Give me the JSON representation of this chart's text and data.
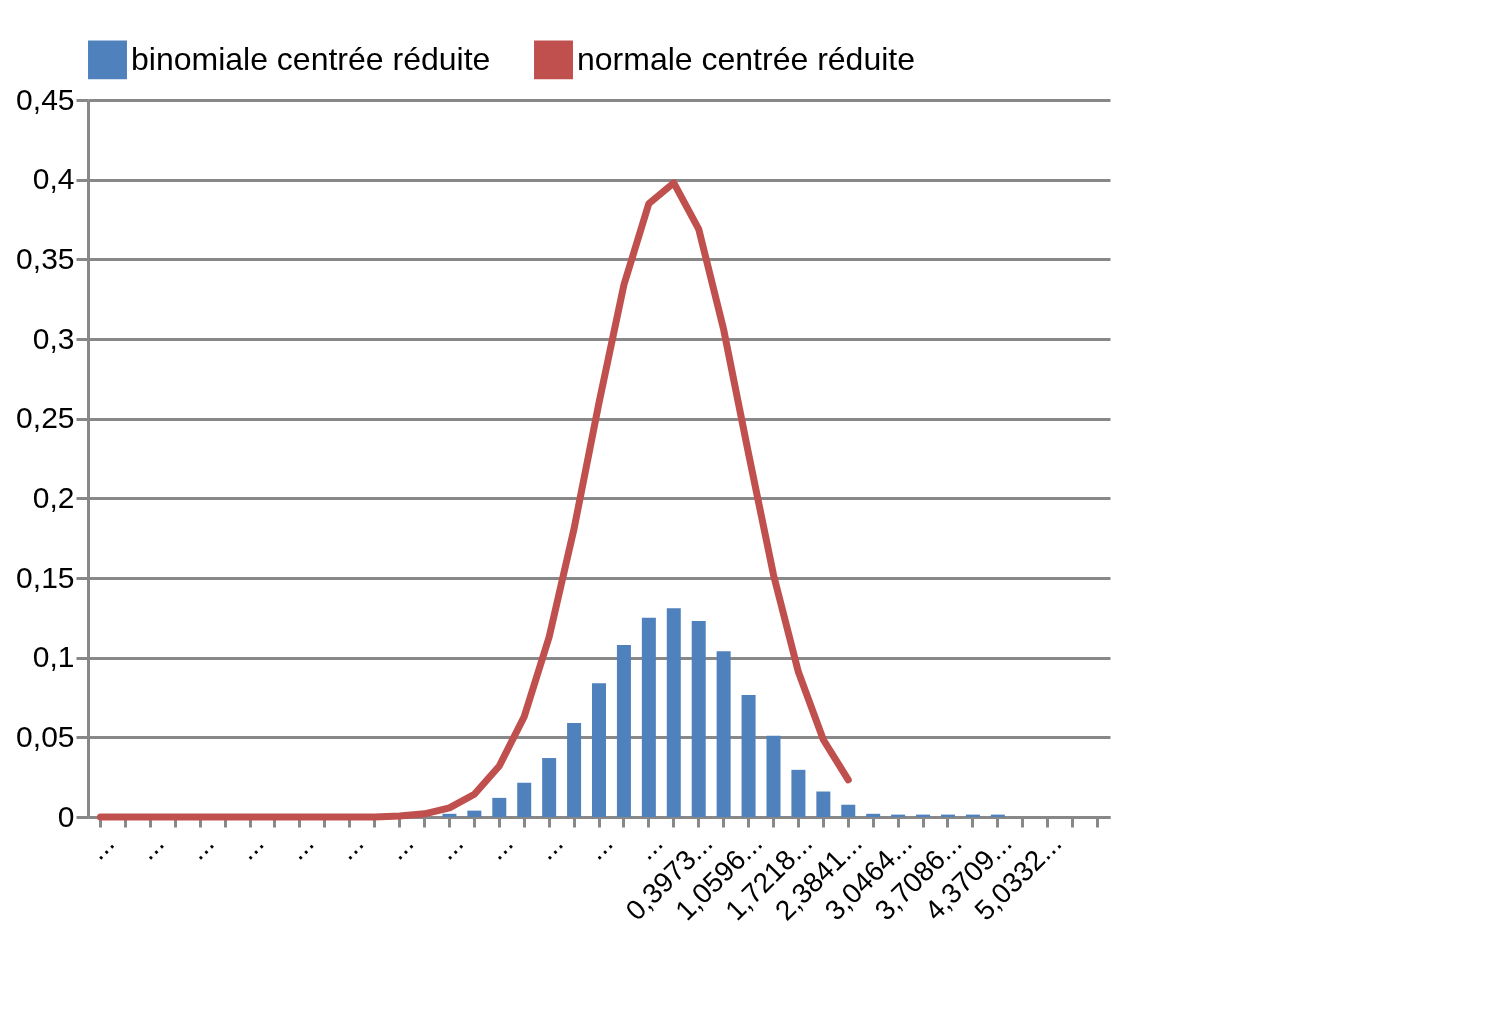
{
  "chart_data": {
    "type": "bar",
    "categories": [
      "...",
      null,
      "...",
      null,
      "...",
      null,
      "...",
      null,
      "...",
      null,
      "...",
      null,
      "...",
      null,
      "...",
      null,
      "...",
      null,
      "...",
      null,
      "...",
      null,
      "...",
      null,
      "0,3973...",
      null,
      "1,0596...",
      null,
      "1,7218...",
      null,
      "2,3841...",
      null,
      "3,0464...",
      null,
      "3,7086...",
      null,
      "4,3709...",
      null,
      "5,0332...",
      null,
      null
    ],
    "series": [
      {
        "name": "binomiale centrée réduite",
        "color": "#4f81bd",
        "values": [
          0,
          0,
          0,
          0,
          0,
          0,
          0,
          0,
          0,
          0,
          0,
          0,
          0,
          0,
          0.002,
          0.004,
          0.012,
          0.0215,
          0.037,
          0.059,
          0.084,
          0.108,
          0.125,
          0.131,
          0.123,
          0.104,
          0.0765,
          0.051,
          0.0296,
          0.016,
          0.0077,
          0.002,
          0.0015,
          0.0015,
          0.0015,
          0.0015,
          0.0015,
          0,
          0,
          0,
          0
        ]
      },
      {
        "name": "normale centrée réduite",
        "type": "line",
        "color": "#c0504d",
        "values": [
          0,
          0,
          0,
          0,
          0,
          0,
          0,
          0,
          0,
          0,
          0,
          0,
          0.0006,
          0.002,
          0.0057,
          0.0143,
          0.032,
          0.063,
          0.113,
          0.181,
          0.26,
          0.334,
          0.385,
          0.398,
          0.369,
          0.306,
          0.228,
          0.152,
          0.091,
          0.0485,
          0.0233,
          null,
          null,
          null,
          null,
          null,
          null,
          null,
          null,
          null,
          null
        ]
      }
    ],
    "ylim": [
      0,
      0.45
    ],
    "yticks": [
      0,
      {
        "value": 0.05,
        "label": "0,05"
      },
      {
        "value": 0.1,
        "label": "0,1"
      },
      {
        "value": 0.15,
        "label": "0,15"
      },
      {
        "value": 0.2,
        "label": "0,2"
      },
      {
        "value": 0.25,
        "label": "0,25"
      },
      {
        "value": 0.3,
        "label": "0,3"
      },
      {
        "value": 0.35,
        "label": "0,35"
      },
      {
        "value": 0.4,
        "label": "0,4"
      },
      {
        "value": 0.45,
        "label": "0,45"
      }
    ],
    "grid": "y",
    "legend": "top"
  }
}
